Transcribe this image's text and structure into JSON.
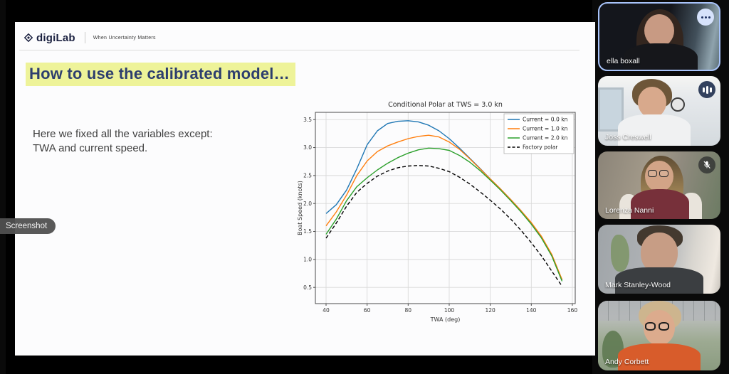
{
  "screenshot_tooltip": {
    "label": "Screenshot"
  },
  "slide": {
    "brand": {
      "logo_text": "digiLab",
      "tagline": "When Uncertainty Matters"
    },
    "title": "How to use the calibrated model…",
    "body_line1": "Here we fixed all the variables except:",
    "body_line2": "TWA and current speed."
  },
  "colors": {
    "title_text": "#2d3e6e",
    "title_highlight": "#eef399",
    "active_speaker_border": "#a8c3fa"
  },
  "chart_data": {
    "type": "line",
    "title": "Conditional Polar at TWS = 3.0 kn",
    "xlabel": "TWA (deg)",
    "ylabel": "Boat Speed (knots)",
    "xlim": [
      34.8,
      161.4
    ],
    "ylim": [
      0.21,
      3.63
    ],
    "xticks": [
      40,
      60,
      80,
      100,
      120,
      140,
      160
    ],
    "yticks": [
      0.5,
      1.0,
      1.5,
      2.0,
      2.5,
      3.0,
      3.5
    ],
    "grid": true,
    "legend_position": "upper right",
    "x": [
      40,
      45,
      50,
      55,
      60,
      65,
      70,
      75,
      80,
      85,
      90,
      95,
      100,
      105,
      110,
      115,
      120,
      125,
      130,
      135,
      140,
      145,
      150,
      155
    ],
    "series": [
      {
        "name": "Current = 0.0 kn",
        "color": "#1f77b4",
        "style": "solid",
        "values": [
          1.82,
          1.98,
          2.24,
          2.62,
          3.05,
          3.3,
          3.43,
          3.47,
          3.48,
          3.46,
          3.4,
          3.3,
          3.16,
          2.99,
          2.81,
          2.63,
          2.44,
          2.26,
          2.07,
          1.87,
          1.65,
          1.4,
          1.08,
          0.63
        ]
      },
      {
        "name": "Current = 1.0 kn",
        "color": "#ff7f0e",
        "style": "solid",
        "values": [
          1.6,
          1.85,
          2.15,
          2.5,
          2.76,
          2.93,
          3.03,
          3.1,
          3.16,
          3.2,
          3.22,
          3.19,
          3.1,
          2.97,
          2.8,
          2.62,
          2.44,
          2.26,
          2.07,
          1.87,
          1.66,
          1.41,
          1.09,
          0.64
        ]
      },
      {
        "name": "Current = 2.0 kn",
        "color": "#2ca02c",
        "style": "solid",
        "values": [
          1.45,
          1.72,
          2.05,
          2.3,
          2.46,
          2.6,
          2.72,
          2.82,
          2.9,
          2.96,
          2.99,
          2.98,
          2.95,
          2.86,
          2.74,
          2.59,
          2.42,
          2.24,
          2.05,
          1.85,
          1.63,
          1.38,
          1.06,
          0.61
        ]
      },
      {
        "name": "Factory polar",
        "color": "#000000",
        "style": "dashed",
        "values": [
          1.38,
          1.65,
          1.95,
          2.2,
          2.36,
          2.49,
          2.58,
          2.64,
          2.67,
          2.68,
          2.67,
          2.63,
          2.57,
          2.47,
          2.35,
          2.21,
          2.06,
          1.9,
          1.72,
          1.52,
          1.3,
          1.06,
          0.79,
          0.52
        ]
      }
    ]
  },
  "participants": [
    {
      "name": "ella boxall",
      "active_speaker": true,
      "indicator": "more-options"
    },
    {
      "name": "Joss Creswell",
      "active_speaker": false,
      "indicator": "audio-activity"
    },
    {
      "name": "Lorenza Nanni",
      "active_speaker": false,
      "indicator": "mic-off"
    },
    {
      "name": "Mark Stanley-Wood",
      "active_speaker": false,
      "indicator": "none"
    },
    {
      "name": "Andy Corbett",
      "active_speaker": false,
      "indicator": "none"
    }
  ]
}
